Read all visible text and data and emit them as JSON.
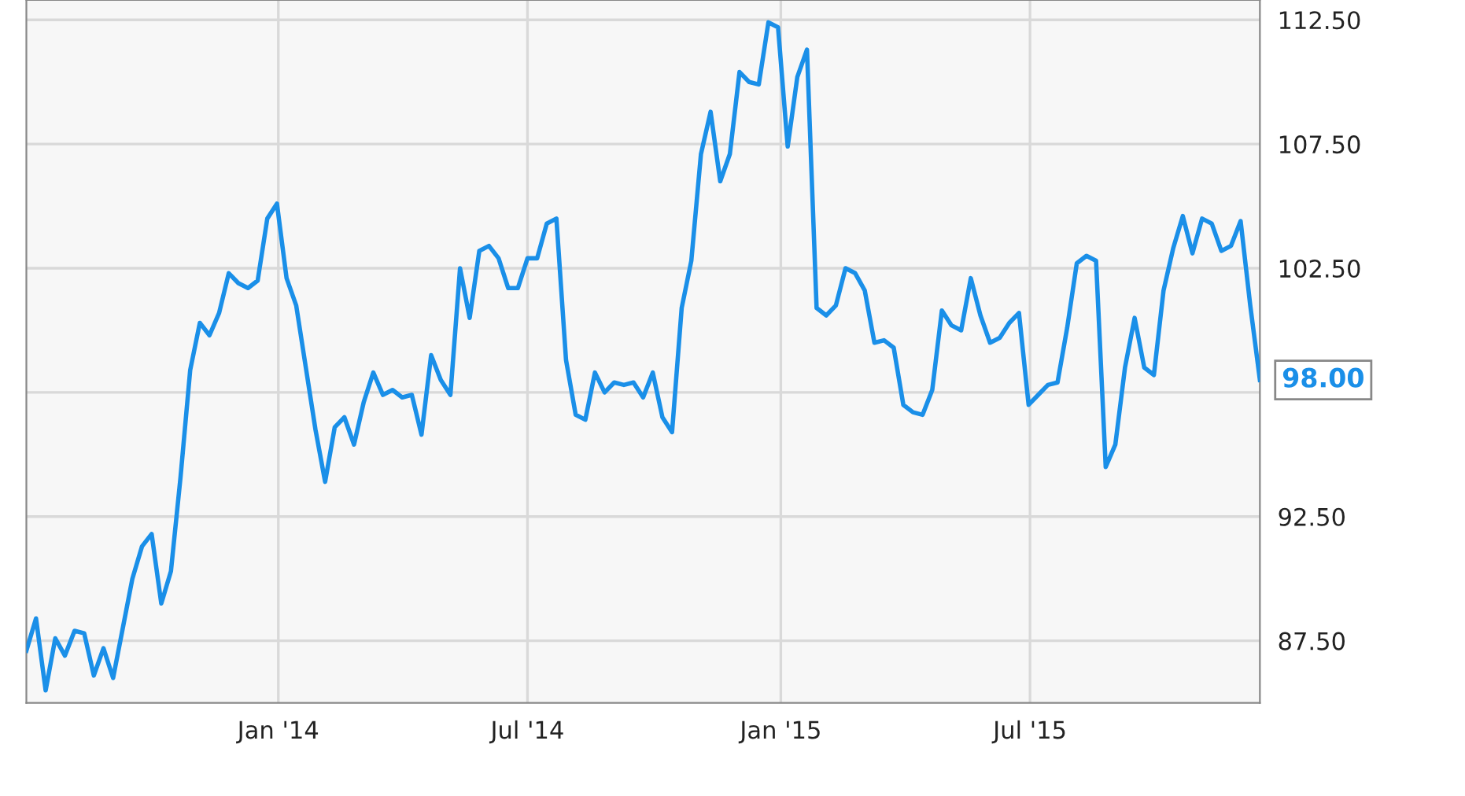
{
  "chart_data": {
    "type": "line",
    "color": "#1a8fe8",
    "grid": true,
    "marker": "none",
    "line_style": "solid",
    "x": [
      "2013-07-02",
      "2013-07-09",
      "2013-07-16",
      "2013-07-23",
      "2013-07-30",
      "2013-08-06",
      "2013-08-13",
      "2013-08-20",
      "2013-08-27",
      "2013-09-03",
      "2013-09-10",
      "2013-09-17",
      "2013-09-24",
      "2013-10-01",
      "2013-10-08",
      "2013-10-15",
      "2013-10-22",
      "2013-10-29",
      "2013-11-05",
      "2013-11-12",
      "2013-11-19",
      "2013-11-26",
      "2013-12-03",
      "2013-12-10",
      "2013-12-17",
      "2013-12-24",
      "2013-12-31",
      "2014-01-07",
      "2014-01-14",
      "2014-01-21",
      "2014-01-28",
      "2014-02-04",
      "2014-02-11",
      "2014-02-18",
      "2014-02-25",
      "2014-03-04",
      "2014-03-11",
      "2014-03-18",
      "2014-03-25",
      "2014-04-01",
      "2014-04-08",
      "2014-04-15",
      "2014-04-22",
      "2014-04-29",
      "2014-05-06",
      "2014-05-13",
      "2014-05-20",
      "2014-05-27",
      "2014-06-03",
      "2014-06-10",
      "2014-06-17",
      "2014-06-24",
      "2014-07-01",
      "2014-07-08",
      "2014-07-15",
      "2014-07-22",
      "2014-07-29",
      "2014-08-05",
      "2014-08-12",
      "2014-08-19",
      "2014-08-26",
      "2014-09-02",
      "2014-09-09",
      "2014-09-16",
      "2014-09-23",
      "2014-09-30",
      "2014-10-07",
      "2014-10-14",
      "2014-10-21",
      "2014-10-28",
      "2014-11-04",
      "2014-11-11",
      "2014-11-18",
      "2014-11-25",
      "2014-12-02",
      "2014-12-09",
      "2014-12-16",
      "2014-12-23",
      "2014-12-30",
      "2015-01-06",
      "2015-01-13",
      "2015-01-20",
      "2015-01-27",
      "2015-02-03",
      "2015-02-10",
      "2015-02-17",
      "2015-02-24",
      "2015-03-03",
      "2015-03-10",
      "2015-03-17",
      "2015-03-24",
      "2015-03-31",
      "2015-04-07",
      "2015-04-14",
      "2015-04-21",
      "2015-04-28",
      "2015-05-05",
      "2015-05-12",
      "2015-05-19",
      "2015-05-26",
      "2015-06-02",
      "2015-06-09",
      "2015-06-16",
      "2015-06-23",
      "2015-06-30",
      "2015-07-07",
      "2015-07-14",
      "2015-07-21",
      "2015-07-28",
      "2015-08-04",
      "2015-08-11",
      "2015-08-18",
      "2015-08-25",
      "2015-09-01",
      "2015-09-08",
      "2015-09-15",
      "2015-09-22",
      "2015-09-29",
      "2015-10-06",
      "2015-10-13",
      "2015-10-20",
      "2015-10-27",
      "2015-11-03",
      "2015-11-10",
      "2015-11-17",
      "2015-11-24",
      "2015-12-01",
      "2015-12-08",
      "2015-12-15"
    ],
    "values": [
      87.1,
      88.4,
      85.5,
      87.6,
      86.9,
      87.9,
      87.8,
      86.1,
      87.2,
      86.0,
      88.0,
      90.0,
      91.3,
      91.8,
      89.0,
      90.3,
      94.1,
      98.4,
      100.3,
      99.8,
      100.7,
      102.3,
      101.9,
      101.7,
      102.0,
      104.5,
      105.1,
      102.1,
      101.0,
      98.5,
      96.0,
      93.9,
      96.1,
      96.5,
      95.4,
      97.1,
      98.3,
      97.4,
      97.6,
      97.3,
      97.4,
      95.8,
      99.0,
      98.0,
      97.4,
      102.5,
      100.5,
      103.2,
      103.4,
      102.9,
      101.7,
      101.7,
      102.9,
      102.9,
      104.3,
      104.5,
      98.8,
      96.6,
      96.4,
      98.3,
      97.5,
      97.9,
      97.8,
      97.9,
      97.3,
      98.3,
      96.5,
      95.9,
      100.9,
      102.8,
      107.1,
      108.8,
      106.0,
      107.1,
      110.4,
      110.0,
      109.9,
      112.4,
      112.2,
      107.4,
      110.2,
      111.3,
      100.9,
      100.6,
      101.0,
      102.5,
      102.3,
      101.6,
      99.5,
      99.6,
      99.3,
      97.0,
      96.7,
      96.6,
      97.6,
      100.8,
      100.2,
      100.0,
      102.1,
      100.6,
      99.5,
      99.7,
      100.3,
      100.7,
      97.0,
      97.4,
      97.8,
      97.9,
      100.1,
      102.7,
      103.0,
      102.8,
      94.5,
      95.4,
      98.5,
      100.5,
      98.5,
      98.2,
      101.6,
      103.3,
      104.6,
      103.1,
      104.5,
      104.3,
      103.2,
      103.4,
      104.4,
      101.0,
      98.0
    ],
    "xlim": [
      "2013-07-02",
      "2015-12-15"
    ],
    "xticks": [
      {
        "value": "2014-01-01",
        "label": "Jan '14"
      },
      {
        "value": "2014-07-01",
        "label": "Jul '14"
      },
      {
        "value": "2015-01-01",
        "label": "Jan '15"
      },
      {
        "value": "2015-07-01",
        "label": "Jul '15"
      }
    ],
    "ylim": [
      85,
      113.3
    ],
    "yticks": [
      {
        "value": 87.5,
        "label": "87.50"
      },
      {
        "value": 92.5,
        "label": "92.50"
      },
      {
        "value": 97.5,
        "label": null
      },
      {
        "value": 102.5,
        "label": "102.50"
      },
      {
        "value": 107.5,
        "label": "107.50"
      },
      {
        "value": 112.5,
        "label": "112.50"
      }
    ],
    "annotations": [
      {
        "text": "98.00",
        "x": "2015-12-15",
        "y": 98.0
      }
    ]
  }
}
